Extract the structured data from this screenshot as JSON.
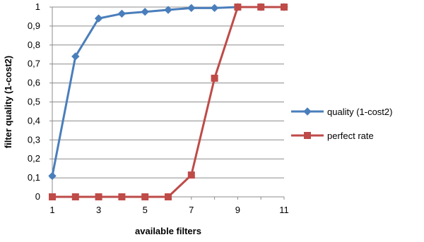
{
  "chart_data": {
    "type": "line",
    "title": "",
    "xlabel": "available filters",
    "ylabel": "filter quality (1-cost2)",
    "xlim": [
      1,
      11
    ],
    "ylim": [
      0,
      1
    ],
    "x_ticks": [
      "1",
      "3",
      "5",
      "7",
      "9",
      "11"
    ],
    "y_ticks": [
      "0",
      "0,1",
      "0,2",
      "0,3",
      "0,4",
      "0,5",
      "0,6",
      "0,7",
      "0,8",
      "0,9",
      "1"
    ],
    "grid": "horizontal",
    "legend_position": "right",
    "x": [
      1,
      2,
      3,
      4,
      5,
      6,
      7,
      8,
      9,
      10,
      11
    ],
    "series": [
      {
        "name": "quality (1-cost2)",
        "color": "#4a7ebb",
        "marker": "diamond",
        "values": [
          0.11,
          0.74,
          0.94,
          0.965,
          0.975,
          0.985,
          0.995,
          0.995,
          1,
          1,
          1
        ]
      },
      {
        "name": "perfect rate",
        "color": "#be4b48",
        "marker": "square",
        "values": [
          0,
          0,
          0,
          0,
          0,
          0,
          0.115,
          0.625,
          1,
          1,
          1
        ]
      }
    ]
  }
}
